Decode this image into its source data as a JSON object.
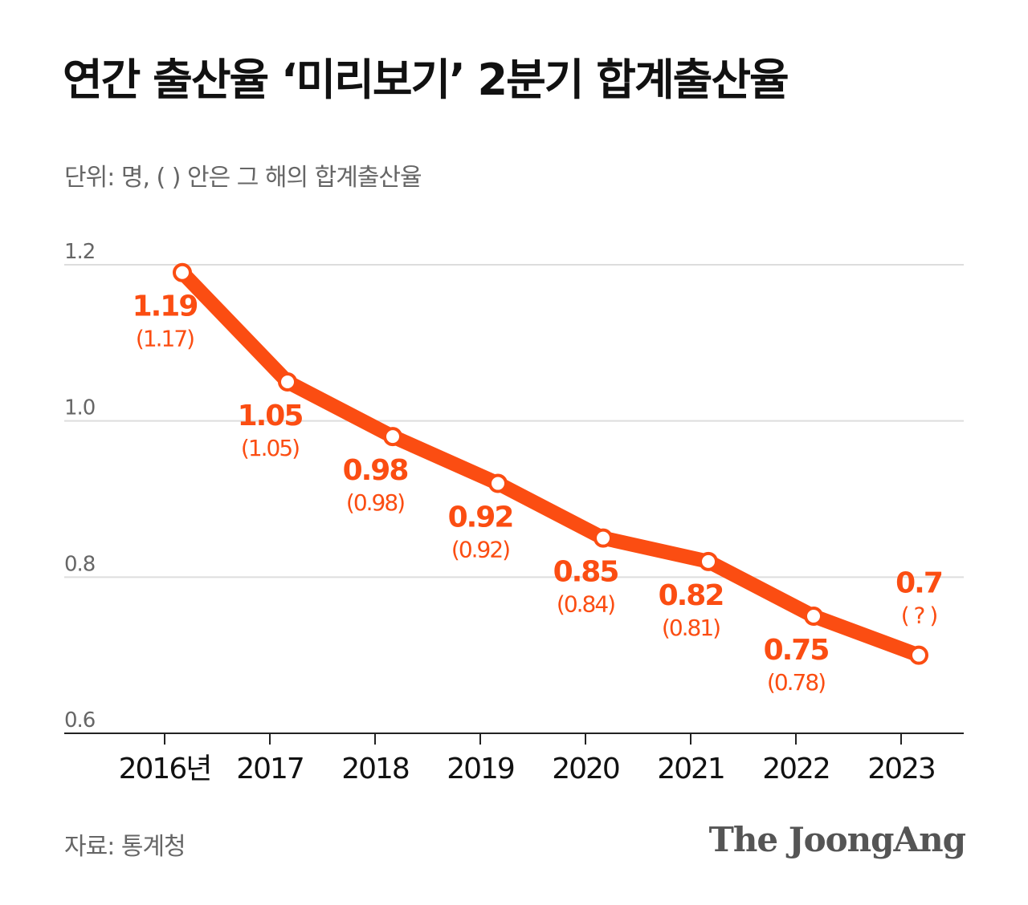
{
  "header": {
    "title": "연간 출산율 ‘미리보기’ 2분기 합계출산율",
    "subtitle": "단위: 명, ( ) 안은 그 해의 합계출산율"
  },
  "footer": {
    "source": "자료: 통계청",
    "brand": "The JoongAng"
  },
  "colors": {
    "accent": "#fb4d12",
    "grid": "#dddddd",
    "axis": "#222222",
    "text": "#111111",
    "muted": "#666666"
  },
  "chart_data": {
    "type": "line",
    "title": "연간 출산율 ‘미리보기’ 2분기 합계출산율",
    "subtitle": "단위: 명, ( ) 안은 그 해의 합계출산율",
    "categories": [
      "2016년",
      "2017",
      "2018",
      "2019",
      "2020",
      "2021",
      "2022",
      "2023"
    ],
    "series": [
      {
        "values": [
          1.19,
          1.05,
          0.98,
          0.92,
          0.85,
          0.82,
          0.75,
          0.7
        ],
        "labels": [
          "1.19",
          "1.05",
          "0.98",
          "0.92",
          "0.85",
          "0.82",
          "0.75",
          "0.7"
        ],
        "secondary_labels": [
          "(1.17)",
          "(1.05)",
          "(0.98)",
          "(0.92)",
          "(0.84)",
          "(0.81)",
          "(0.78)",
          "( ? )"
        ]
      }
    ],
    "yticks": [
      "0.6",
      "0.8",
      "1.0",
      "1.2"
    ],
    "ylim": [
      0.6,
      1.2
    ],
    "grid": true,
    "legend": "none"
  }
}
